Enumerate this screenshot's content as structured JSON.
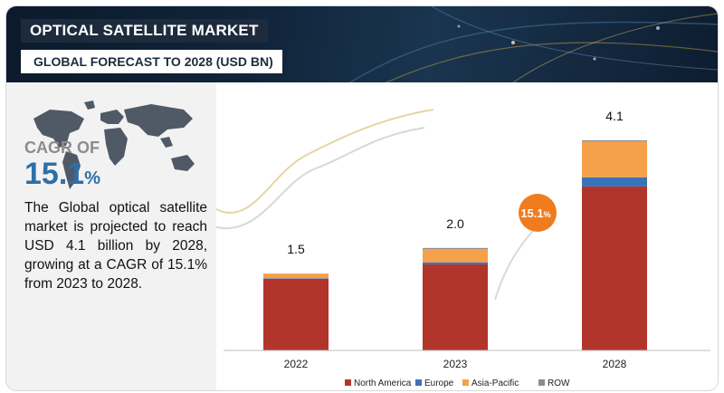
{
  "header": {
    "title": "OPTICAL SATELLITE MARKET",
    "subtitle": "GLOBAL FORECAST TO 2028 (USD BN)"
  },
  "left_panel": {
    "cagr_label": "CAGR OF",
    "cagr_value": "15.1",
    "cagr_unit": "%",
    "description": "The Global optical satellite market is projected to reach USD 4.1 billion by 2028, growing at a CAGR of 15.1% from 2023 to 2028.",
    "map_icon": "world-map-icon"
  },
  "colors": {
    "north_america": "#b2352c",
    "europe": "#3b73b9",
    "asia_pacific": "#f5a04a",
    "row": "#8c8c8c",
    "cagr_bubble": "#f07c1e",
    "accent": "#2e6fa7"
  },
  "chart_data": {
    "type": "bar",
    "stacked": true,
    "categories": [
      "2022",
      "2023",
      "2028"
    ],
    "series": [
      {
        "name": "North America",
        "values": [
          1.4,
          1.68,
          3.2
        ]
      },
      {
        "name": "Europe",
        "values": [
          0.01,
          0.04,
          0.18
        ]
      },
      {
        "name": "Asia-Pacific",
        "values": [
          0.09,
          0.26,
          0.7
        ]
      },
      {
        "name": "ROW",
        "values": [
          0.0,
          0.02,
          0.02
        ]
      }
    ],
    "totals": [
      "1.5",
      "2.0",
      "4.1"
    ],
    "ylim": [
      0,
      4.1
    ],
    "cagr_bubble": "15.1",
    "cagr_bubble_unit": "%",
    "legend_position": "bottom",
    "grid": false
  }
}
